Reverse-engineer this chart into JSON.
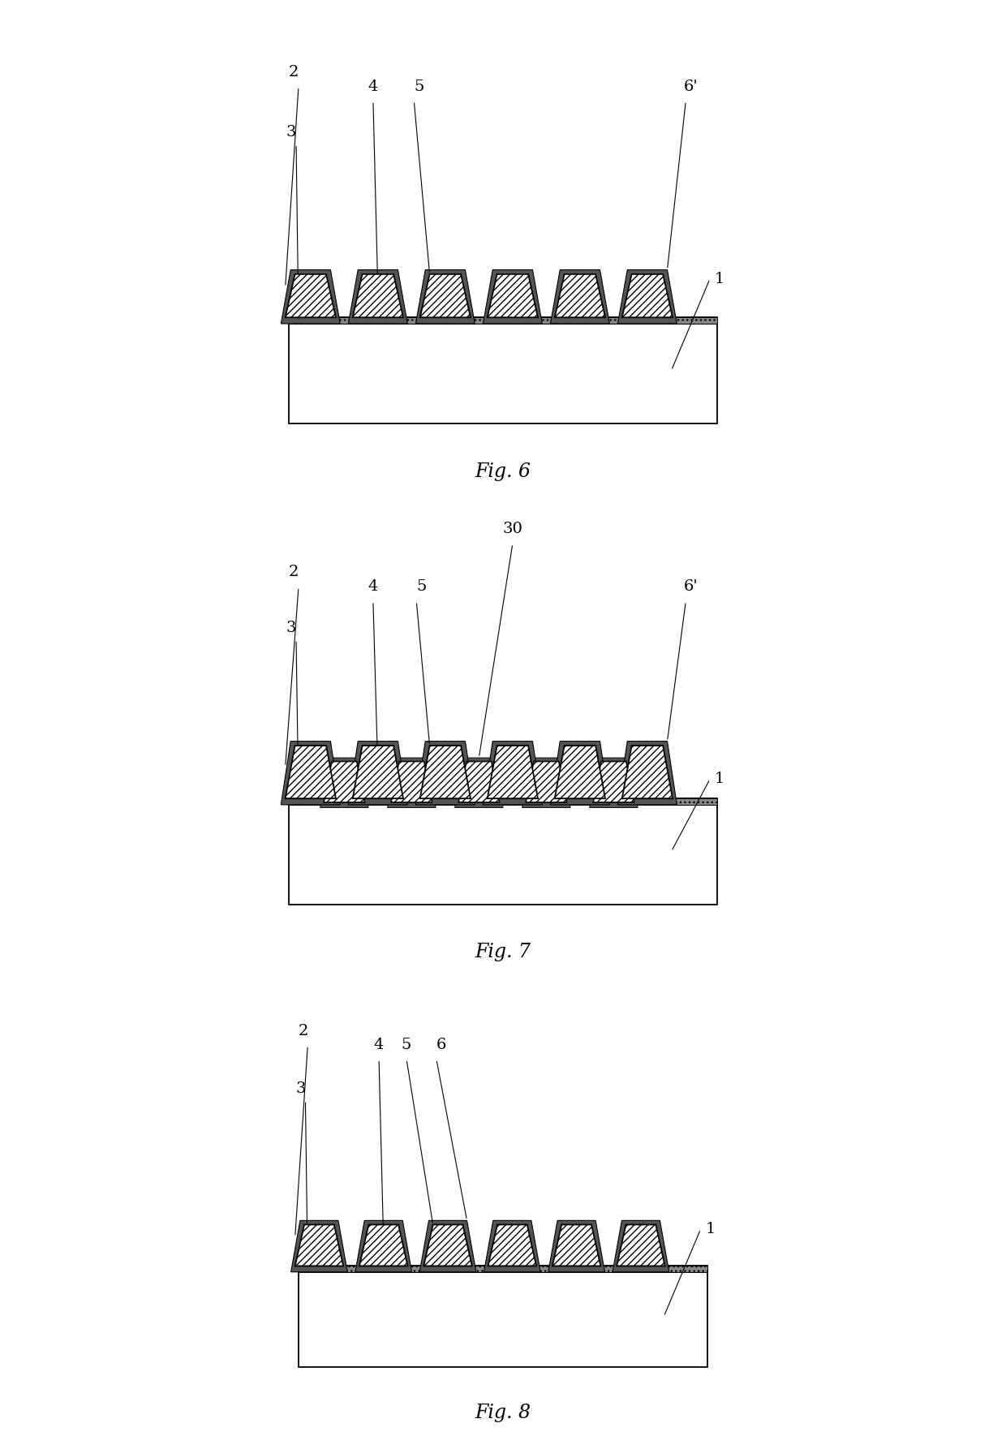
{
  "background_color": "#ffffff",
  "line_color": "#000000",
  "fig_fontsize": 17,
  "label_fontsize": 14,
  "figures": [
    {
      "name": "Fig. 6",
      "has_interleaved": false,
      "labels_fig6": true
    },
    {
      "name": "Fig. 7",
      "has_interleaved": true,
      "labels_fig6": false
    },
    {
      "name": "Fig. 8",
      "has_interleaved": false,
      "labels_fig8": true
    }
  ]
}
